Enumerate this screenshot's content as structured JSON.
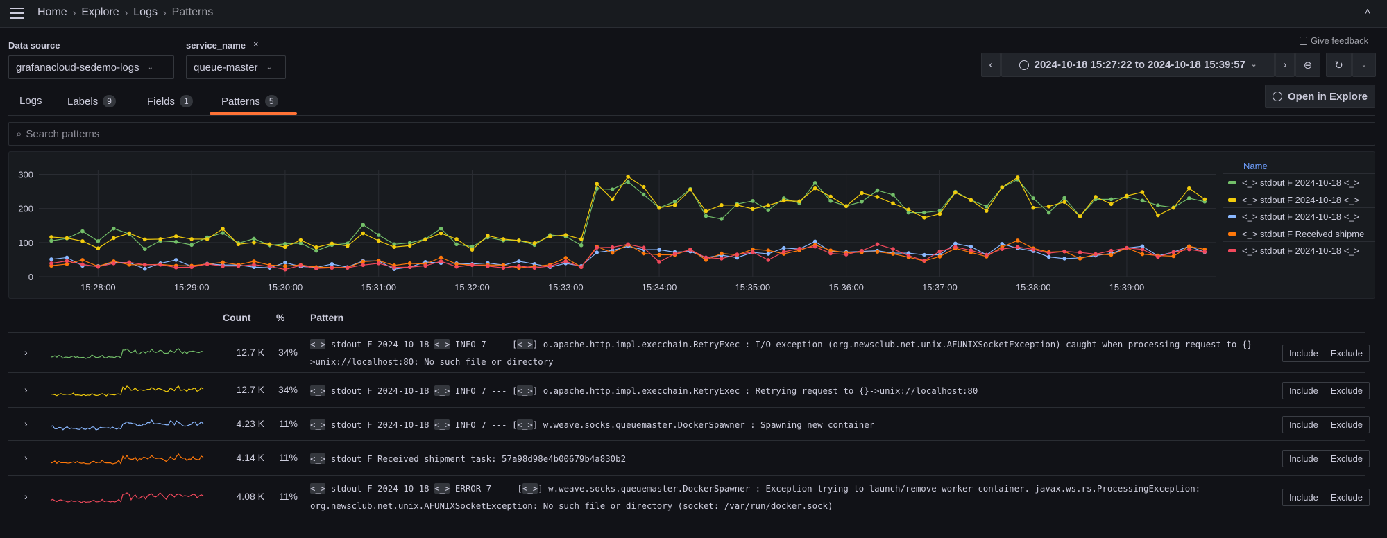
{
  "breadcrumb": [
    "Home",
    "Explore",
    "Logs",
    "Patterns"
  ],
  "filters": {
    "datasource_label": "Data source",
    "datasource_value": "grafanacloud-sedemo-logs",
    "service_label": "service_name",
    "service_value": "queue-master"
  },
  "toolbar": {
    "feedback": "Give feedback",
    "time_range": "2024-10-18 15:27:22 to 2024-10-18 15:39:57",
    "open_explore": "Open in Explore"
  },
  "tabs": [
    {
      "label": "Logs",
      "count": null
    },
    {
      "label": "Labels",
      "count": "9"
    },
    {
      "label": "Fields",
      "count": "1"
    },
    {
      "label": "Patterns",
      "count": "5",
      "active": true
    }
  ],
  "search": {
    "placeholder": "Search patterns"
  },
  "colors": {
    "accent": "#ff7236",
    "green": "#73bf69",
    "yellow": "#f2cc0c",
    "blue": "#8ab8ff",
    "orange": "#ff780a",
    "red": "#f2495c",
    "legend_header": "#6e9fff"
  },
  "chart_data": {
    "type": "line",
    "ylim": [
      0,
      330
    ],
    "yticks": [
      "0",
      "100",
      "200",
      "300"
    ],
    "xticks": [
      "15:28:00",
      "15:29:00",
      "15:30:00",
      "15:31:00",
      "15:32:00",
      "15:33:00",
      "15:34:00",
      "15:35:00",
      "15:36:00",
      "15:37:00",
      "15:38:00",
      "15:39:00"
    ],
    "xlim": [
      "15:27:22",
      "15:39:57"
    ],
    "grid": true,
    "legend": {
      "title": "Name",
      "placement": "right"
    },
    "x": [
      "15:27:30",
      "15:27:40",
      "15:27:50",
      "15:28:00",
      "15:28:10",
      "15:28:20",
      "15:28:30",
      "15:28:40",
      "15:28:50",
      "15:29:00",
      "15:29:10",
      "15:29:20",
      "15:29:30",
      "15:29:40",
      "15:29:50",
      "15:30:00",
      "15:30:10",
      "15:30:20",
      "15:30:30",
      "15:30:40",
      "15:30:50",
      "15:31:00",
      "15:31:10",
      "15:31:20",
      "15:31:30",
      "15:31:40",
      "15:31:50",
      "15:32:00",
      "15:32:10",
      "15:32:20",
      "15:32:30",
      "15:32:40",
      "15:32:50",
      "15:33:00",
      "15:33:10",
      "15:33:20",
      "15:33:30",
      "15:33:40",
      "15:33:50",
      "15:34:00",
      "15:34:10",
      "15:34:20",
      "15:34:30",
      "15:34:40",
      "15:34:50",
      "15:35:00",
      "15:35:10",
      "15:35:20",
      "15:35:30",
      "15:35:40",
      "15:35:50",
      "15:36:00",
      "15:36:10",
      "15:36:20",
      "15:36:30",
      "15:36:40",
      "15:36:50",
      "15:37:00",
      "15:37:10",
      "15:37:20",
      "15:37:30",
      "15:37:40",
      "15:37:50",
      "15:38:00",
      "15:38:10",
      "15:38:20",
      "15:38:30",
      "15:38:40",
      "15:38:50",
      "15:39:00",
      "15:39:10",
      "15:39:20",
      "15:39:30",
      "15:39:40",
      "15:39:50"
    ],
    "series": [
      {
        "name": "<_> stdout F 2024-10-18 <_>",
        "color": "#73bf69",
        "values": [
          105,
          112,
          133,
          104,
          141,
          125,
          81,
          105,
          102,
          93,
          115,
          128,
          98,
          111,
          92,
          96,
          98,
          76,
          93,
          97,
          152,
          122,
          95,
          99,
          110,
          141,
          95,
          88,
          115,
          106,
          106,
          93,
          122,
          118,
          92,
          258,
          256,
          278,
          241,
          202,
          220,
          257,
          178,
          169,
          213,
          222,
          195,
          230,
          215,
          275,
          222,
          207,
          220,
          253,
          240,
          188,
          188,
          193,
          249,
          225,
          206,
          261,
          285,
          230,
          188,
          231,
          177,
          227,
          227,
          234,
          223,
          209,
          203,
          230,
          220
        ]
      },
      {
        "name": "<_> stdout F 2024-10-18 <_>",
        "color": "#f2cc0c",
        "values": [
          116,
          113,
          104,
          83,
          113,
          127,
          109,
          110,
          118,
          110,
          110,
          140,
          95,
          100,
          95,
          87,
          107,
          86,
          97,
          90,
          127,
          105,
          87,
          91,
          109,
          127,
          110,
          79,
          120,
          110,
          106,
          98,
          118,
          122,
          110,
          272,
          227,
          293,
          263,
          202,
          210,
          255,
          192,
          210,
          210,
          199,
          209,
          223,
          221,
          259,
          235,
          207,
          245,
          234,
          215,
          197,
          173,
          184,
          247,
          225,
          193,
          262,
          291,
          202,
          206,
          219,
          177,
          234,
          213,
          237,
          248,
          180,
          202,
          259,
          227
        ]
      },
      {
        "name": "<_> stdout F 2024-10-18 <_>",
        "color": "#8ab8ff",
        "values": [
          51,
          56,
          32,
          31,
          42,
          41,
          23,
          39,
          49,
          30,
          38,
          34,
          34,
          28,
          26,
          41,
          30,
          27,
          37,
          28,
          46,
          46,
          22,
          28,
          43,
          40,
          39,
          37,
          40,
          34,
          45,
          37,
          28,
          39,
          31,
          71,
          77,
          89,
          79,
          79,
          72,
          74,
          56,
          63,
          56,
          71,
          67,
          84,
          81,
          103,
          74,
          72,
          74,
          76,
          69,
          69,
          64,
          64,
          97,
          88,
          64,
          96,
          83,
          75,
          58,
          53,
          55,
          62,
          68,
          84,
          89,
          61,
          72,
          89,
          72
        ]
      },
      {
        "name": "<_> stdout F Received shipme",
        "color": "#ff780a",
        "values": [
          32,
          37,
          49,
          30,
          45,
          35,
          35,
          36,
          32,
          32,
          37,
          42,
          35,
          45,
          34,
          31,
          34,
          28,
          27,
          27,
          44,
          47,
          33,
          39,
          37,
          56,
          37,
          34,
          34,
          34,
          26,
          30,
          35,
          55,
          28,
          88,
          70,
          94,
          68,
          64,
          64,
          80,
          49,
          68,
          64,
          80,
          77,
          67,
          77,
          93,
          77,
          70,
          72,
          73,
          67,
          57,
          46,
          59,
          83,
          71,
          59,
          87,
          106,
          83,
          72,
          74,
          53,
          66,
          64,
          84,
          66,
          62,
          60,
          89,
          80
        ]
      },
      {
        "name": "<_> stdout F 2024-10-18 <_>",
        "color": "#f2495c",
        "values": [
          39,
          46,
          36,
          29,
          39,
          42,
          35,
          35,
          27,
          28,
          37,
          31,
          31,
          35,
          30,
          21,
          33,
          24,
          26,
          26,
          34,
          39,
          27,
          28,
          32,
          45,
          29,
          34,
          31,
          26,
          31,
          26,
          31,
          45,
          28,
          85,
          86,
          95,
          85,
          43,
          67,
          79,
          56,
          53,
          65,
          72,
          49,
          73,
          82,
          88,
          68,
          65,
          76,
          95,
          81,
          62,
          47,
          74,
          87,
          77,
          64,
          81,
          87,
          80,
          69,
          74,
          71,
          66,
          76,
          84,
          80,
          58,
          72,
          80,
          73
        ]
      }
    ]
  },
  "table": {
    "headers": {
      "count": "Count",
      "percent": "%",
      "pattern": "Pattern"
    },
    "include_label": "Include",
    "exclude_label": "Exclude",
    "rows": [
      {
        "count": "12.7 K",
        "percent": "34%",
        "pattern": "<_> stdout F 2024-10-18 <_> INFO 7 --- [<_>] o.apache.http.impl.execchain.RetryExec : I/O exception (org.newsclub.net.unix.AFUNIXSocketException) caught when processing request to {}->unix://localhost:80: No such file or directory"
      },
      {
        "count": "12.7 K",
        "percent": "34%",
        "pattern": "<_> stdout F 2024-10-18 <_> INFO 7 --- [<_>] o.apache.http.impl.execchain.RetryExec : Retrying request to {}->unix://localhost:80"
      },
      {
        "count": "4.23 K",
        "percent": "11%",
        "pattern": "<_> stdout F 2024-10-18 <_> INFO 7 --- [<_>] w.weave.socks.queuemaster.DockerSpawner : Spawning new container"
      },
      {
        "count": "4.14 K",
        "percent": "11%",
        "pattern": "<_> stdout F Received shipment task: 57a98d98e4b00679b4a830b2"
      },
      {
        "count": "4.08 K",
        "percent": "11%",
        "pattern": "<_> stdout F 2024-10-18 <_> ERROR 7 --- [<_>] w.weave.socks.queuemaster.DockerSpawner : Exception trying to launch/remove worker container. javax.ws.rs.ProcessingException: org.newsclub.net.unix.AFUNIXSocketException: No such file or directory (socket: /var/run/docker.sock)"
      }
    ]
  }
}
